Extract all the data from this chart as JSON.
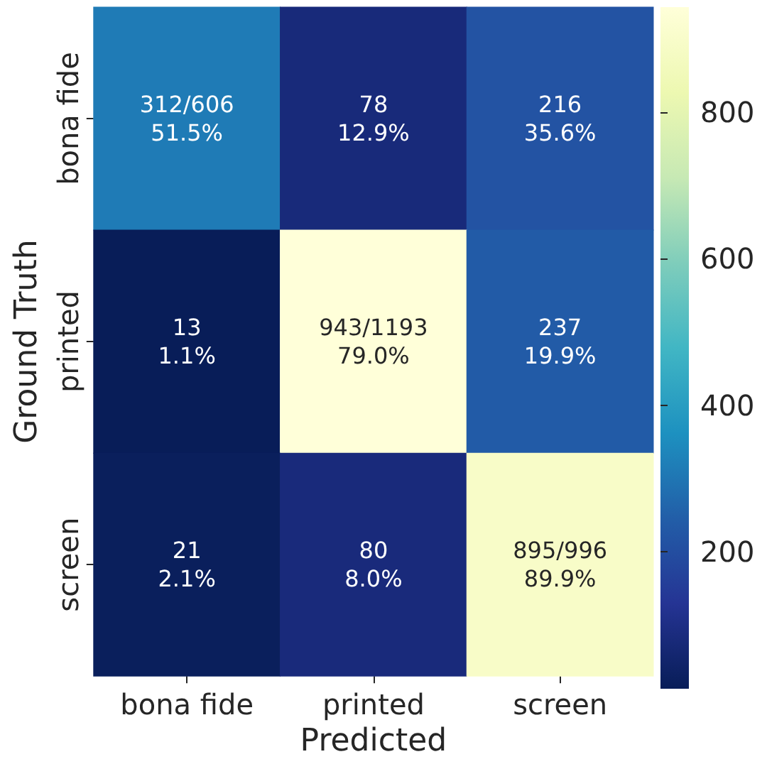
{
  "chart_data": {
    "type": "heatmap",
    "xlabel": "Predicted",
    "ylabel": "Ground Truth",
    "categories": [
      "bona fide",
      "printed",
      "screen"
    ],
    "y_categories": [
      "bona fide",
      "printed",
      "screen"
    ],
    "cells": [
      [
        312,
        78,
        216
      ],
      [
        13,
        943,
        237
      ],
      [
        21,
        80,
        895
      ]
    ],
    "cell_labels": [
      [
        "312/606\n51.5%",
        "78\n12.9%",
        "216\n35.6%"
      ],
      [
        "13\n1.1%",
        "943/1193\n79.0%",
        "237\n19.9%"
      ],
      [
        "21\n2.1%",
        "80\n8.0%",
        "895/996\n89.9%"
      ]
    ],
    "clim": [
      13,
      943
    ],
    "cticks": [
      200,
      400,
      600,
      800
    ]
  }
}
